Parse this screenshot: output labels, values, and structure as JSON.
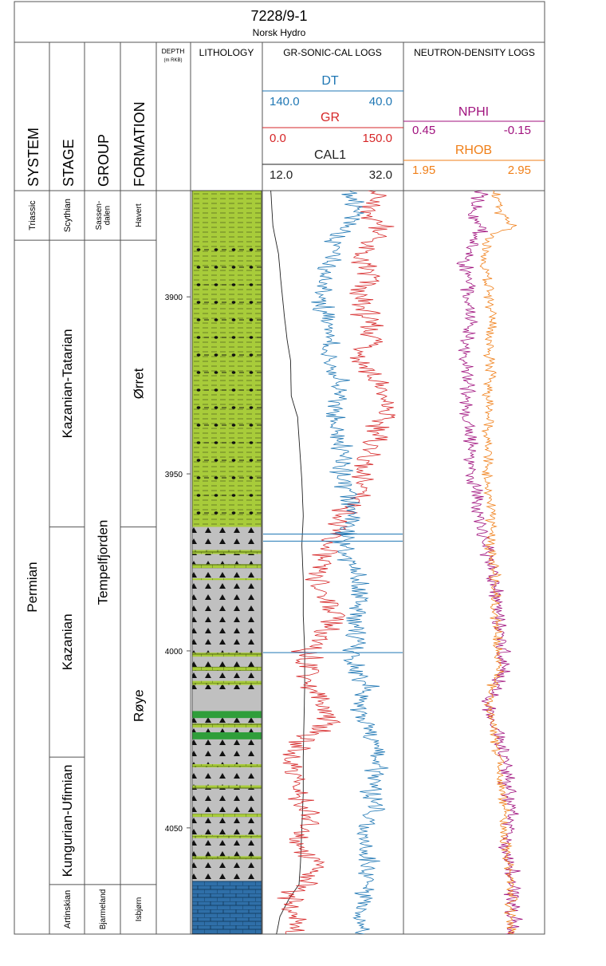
{
  "header": {
    "title": "7228/9-1",
    "subtitle": "Norsk Hydro"
  },
  "columns": {
    "system": "SYSTEM",
    "stage": "STAGE",
    "group": "GROUP",
    "formation": "FORMATION",
    "depth": "DEPTH",
    "depth_unit": "(m RKB)",
    "lithology": "LITHOLOGY",
    "gr_sonic_cal": "GR-SONIC-CAL LOGS",
    "neutron_density": "NEUTRON-DENSITY LOGS"
  },
  "colors": {
    "DT": "#1f77b4",
    "GR": "#d62728",
    "CAL1": "#222222",
    "NPHI": "#a0127e",
    "RHOB": "#f07f18",
    "shale": "#a8cc3a",
    "sandstone": "#c0c0c0",
    "limestone": "#2f6fa8",
    "green_bed": "#2f9e3a"
  },
  "curves": {
    "DT": {
      "name": "DT",
      "left": "140.0",
      "right": "40.0"
    },
    "GR": {
      "name": "GR",
      "left": "0.0",
      "right": "150.0"
    },
    "CAL1": {
      "name": "CAL1",
      "left": "12.0",
      "right": "32.0"
    },
    "NPHI": {
      "name": "NPHI",
      "left": "0.45",
      "right": "-0.15"
    },
    "RHOB": {
      "name": "RHOB",
      "left": "1.95",
      "right": "2.95"
    }
  },
  "stratigraphy": {
    "system": [
      {
        "name": "Triassic",
        "top": 3870,
        "base": 3884
      },
      {
        "name": "Permian",
        "top": 3884,
        "base": 4080
      }
    ],
    "stage": [
      {
        "name": "Scythian",
        "top": 3870,
        "base": 3884
      },
      {
        "name": "Kazanian-Tatarian",
        "top": 3884,
        "base": 3965
      },
      {
        "name": "Kazanian",
        "top": 3965,
        "base": 4030
      },
      {
        "name": "Kungurian-Ufimian",
        "top": 4030,
        "base": 4066
      },
      {
        "name": "Artinskian",
        "top": 4066,
        "base": 4080
      }
    ],
    "group": [
      {
        "name": "Sassen-\ndalen",
        "top": 3870,
        "base": 3884
      },
      {
        "name": "Tempelfjorden",
        "top": 3884,
        "base": 4066
      },
      {
        "name": "Bjarmeland",
        "top": 4066,
        "base": 4080
      }
    ],
    "formation": [
      {
        "name": "Havert",
        "top": 3870,
        "base": 3884
      },
      {
        "name": "Ørret",
        "top": 3884,
        "base": 3965
      },
      {
        "name": "Røye",
        "top": 3965,
        "base": 4066
      },
      {
        "name": "Isbjørn",
        "top": 4066,
        "base": 4080
      }
    ]
  },
  "chart_data": {
    "type": "line",
    "title": "7228/9-1",
    "subtitle": "Norsk Hydro",
    "ylabel": "DEPTH (m RKB)",
    "ylim": [
      3870,
      4080
    ],
    "depth_ticks": [
      3900,
      3950,
      4000,
      4050
    ],
    "lithology": [
      {
        "type": "shale_nodules",
        "top": 3870,
        "base": 3965
      },
      {
        "type": "sandstone",
        "top": 3965,
        "base": 3967
      },
      {
        "type": "sandstone",
        "top": 3967,
        "base": 3970
      },
      {
        "type": "sand_lime",
        "top": 3970,
        "base": 3980
      },
      {
        "type": "sandstone",
        "top": 3980,
        "base": 3999
      },
      {
        "type": "sand_lime",
        "top": 3999,
        "base": 4012
      },
      {
        "type": "green_bed",
        "top": 4017,
        "base": 4019
      },
      {
        "type": "sand_lime",
        "top": 4019,
        "base": 4023
      },
      {
        "type": "green_bed",
        "top": 4023,
        "base": 4025
      },
      {
        "type": "sandstone",
        "top": 4025,
        "base": 4065
      },
      {
        "type": "limestone",
        "top": 4065,
        "base": 4080
      }
    ],
    "series": [
      {
        "name": "CAL1",
        "scale": [
          12.0,
          32.0
        ],
        "points": [
          [
            3870,
            13.2
          ],
          [
            3880,
            13.5
          ],
          [
            3888,
            14.3
          ],
          [
            3895,
            14.6
          ],
          [
            3905,
            15.1
          ],
          [
            3912,
            15.5
          ],
          [
            3918,
            16.0
          ],
          [
            3928,
            16.1
          ],
          [
            3934,
            17.0
          ],
          [
            3946,
            17.4
          ],
          [
            3952,
            17.6
          ],
          [
            3962,
            17.8
          ],
          [
            3970,
            17.6
          ],
          [
            3980,
            17.8
          ],
          [
            3990,
            17.8
          ],
          [
            4000,
            18.0
          ],
          [
            4010,
            18.0
          ],
          [
            4020,
            17.9
          ],
          [
            4030,
            17.8
          ],
          [
            4040,
            17.8
          ],
          [
            4050,
            17.6
          ],
          [
            4060,
            17.4
          ],
          [
            4066,
            17.2
          ],
          [
            4070,
            15.8
          ],
          [
            4075,
            14.5
          ],
          [
            4080,
            14.0
          ]
        ]
      },
      {
        "name": "GR",
        "scale": [
          0.0,
          150.0
        ],
        "points": [
          [
            3870,
            125
          ],
          [
            3876,
            110
          ],
          [
            3880,
            128
          ],
          [
            3884,
            118
          ],
          [
            3888,
            102
          ],
          [
            3895,
            114
          ],
          [
            3900,
            100
          ],
          [
            3906,
            112
          ],
          [
            3912,
            118
          ],
          [
            3918,
            105
          ],
          [
            3924,
            120
          ],
          [
            3930,
            132
          ],
          [
            3936,
            125
          ],
          [
            3942,
            118
          ],
          [
            3946,
            110
          ],
          [
            3950,
            100
          ],
          [
            3955,
            110
          ],
          [
            3960,
            90
          ],
          [
            3965,
            78
          ],
          [
            3970,
            70
          ],
          [
            3975,
            60
          ],
          [
            3980,
            55
          ],
          [
            3985,
            70
          ],
          [
            3990,
            80
          ],
          [
            3995,
            62
          ],
          [
            4000,
            45
          ],
          [
            4005,
            55
          ],
          [
            4010,
            48
          ],
          [
            4015,
            65
          ],
          [
            4020,
            72
          ],
          [
            4025,
            42
          ],
          [
            4030,
            30
          ],
          [
            4035,
            38
          ],
          [
            4040,
            34
          ],
          [
            4045,
            50
          ],
          [
            4050,
            45
          ],
          [
            4055,
            40
          ],
          [
            4060,
            60
          ],
          [
            4065,
            50
          ],
          [
            4068,
            35
          ],
          [
            4072,
            30
          ],
          [
            4076,
            34
          ],
          [
            4080,
            32
          ]
        ]
      },
      {
        "name": "DT",
        "scale": [
          140.0,
          40.0
        ],
        "points": [
          [
            3870,
            78
          ],
          [
            3876,
            74
          ],
          [
            3880,
            80
          ],
          [
            3884,
            92
          ],
          [
            3888,
            88
          ],
          [
            3894,
            95
          ],
          [
            3900,
            98
          ],
          [
            3908,
            94
          ],
          [
            3914,
            92
          ],
          [
            3920,
            88
          ],
          [
            3928,
            85
          ],
          [
            3934,
            90
          ],
          [
            3940,
            86
          ],
          [
            3946,
            82
          ],
          [
            3950,
            84
          ],
          [
            3955,
            80
          ],
          [
            3960,
            78
          ],
          [
            3966,
            80
          ],
          [
            3970,
            82
          ],
          [
            3975,
            78
          ],
          [
            3980,
            72
          ],
          [
            3985,
            70
          ],
          [
            3990,
            74
          ],
          [
            3995,
            72
          ],
          [
            4000,
            76
          ],
          [
            4005,
            74
          ],
          [
            4010,
            66
          ],
          [
            4015,
            70
          ],
          [
            4020,
            66
          ],
          [
            4025,
            62
          ],
          [
            4030,
            58
          ],
          [
            4035,
            60
          ],
          [
            4040,
            64
          ],
          [
            4045,
            62
          ],
          [
            4050,
            66
          ],
          [
            4055,
            70
          ],
          [
            4060,
            64
          ],
          [
            4065,
            66
          ],
          [
            4070,
            68
          ],
          [
            4075,
            72
          ],
          [
            4080,
            70
          ]
        ]
      },
      {
        "name": "NPHI",
        "scale": [
          0.45,
          -0.15
        ],
        "points": [
          [
            3870,
            0.12
          ],
          [
            3876,
            0.16
          ],
          [
            3880,
            0.11
          ],
          [
            3884,
            0.15
          ],
          [
            3890,
            0.19
          ],
          [
            3895,
            0.17
          ],
          [
            3900,
            0.18
          ],
          [
            3908,
            0.16
          ],
          [
            3915,
            0.2
          ],
          [
            3920,
            0.18
          ],
          [
            3928,
            0.17
          ],
          [
            3934,
            0.19
          ],
          [
            3940,
            0.16
          ],
          [
            3946,
            0.17
          ],
          [
            3952,
            0.15
          ],
          [
            3958,
            0.14
          ],
          [
            3965,
            0.12
          ],
          [
            3970,
            0.1
          ],
          [
            3975,
            0.08
          ],
          [
            3980,
            0.06
          ],
          [
            3988,
            0.05
          ],
          [
            3995,
            0.04
          ],
          [
            4000,
            0.03
          ],
          [
            4005,
            0.02
          ],
          [
            4010,
            0.06
          ],
          [
            4015,
            0.09
          ],
          [
            4020,
            0.07
          ],
          [
            4025,
            0.04
          ],
          [
            4030,
            0.02
          ],
          [
            4035,
            0.01
          ],
          [
            4040,
            0.01
          ],
          [
            4045,
            -0.01
          ],
          [
            4050,
            0.0
          ],
          [
            4055,
            0.02
          ],
          [
            4060,
            -0.01
          ],
          [
            4065,
            -0.02
          ],
          [
            4070,
            -0.01
          ],
          [
            4075,
            -0.02
          ],
          [
            4080,
            -0.01
          ]
        ]
      },
      {
        "name": "RHOB",
        "scale": [
          1.95,
          2.95
        ],
        "points": [
          [
            3870,
            2.6
          ],
          [
            3876,
            2.63
          ],
          [
            3880,
            2.72
          ],
          [
            3883,
            2.55
          ],
          [
            3888,
            2.52
          ],
          [
            3895,
            2.54
          ],
          [
            3900,
            2.56
          ],
          [
            3908,
            2.58
          ],
          [
            3915,
            2.56
          ],
          [
            3920,
            2.57
          ],
          [
            3928,
            2.55
          ],
          [
            3934,
            2.56
          ],
          [
            3940,
            2.54
          ],
          [
            3946,
            2.55
          ],
          [
            3952,
            2.54
          ],
          [
            3958,
            2.56
          ],
          [
            3965,
            2.58
          ],
          [
            3970,
            2.57
          ],
          [
            3975,
            2.58
          ],
          [
            3980,
            2.6
          ],
          [
            3988,
            2.6
          ],
          [
            3995,
            2.62
          ],
          [
            4000,
            2.62
          ],
          [
            4005,
            2.63
          ],
          [
            4010,
            2.58
          ],
          [
            4015,
            2.55
          ],
          [
            4020,
            2.58
          ],
          [
            4025,
            2.6
          ],
          [
            4030,
            2.62
          ],
          [
            4035,
            2.64
          ],
          [
            4040,
            2.65
          ],
          [
            4045,
            2.68
          ],
          [
            4050,
            2.66
          ],
          [
            4055,
            2.67
          ],
          [
            4060,
            2.7
          ],
          [
            4065,
            2.7
          ],
          [
            4070,
            2.72
          ],
          [
            4075,
            2.71
          ],
          [
            4080,
            2.72
          ]
        ]
      }
    ]
  }
}
